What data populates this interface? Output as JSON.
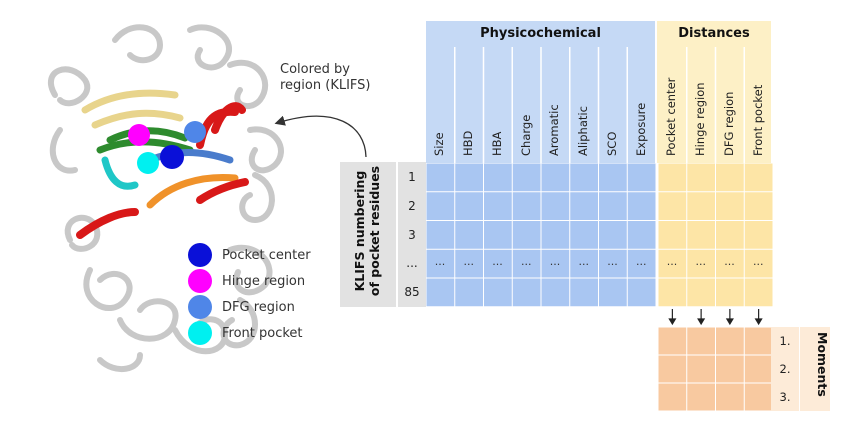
{
  "annotation": {
    "line1": "Colored by",
    "line2": "region (KLIFS)"
  },
  "legend": [
    {
      "label": "Pocket center",
      "color": "#0a10d8"
    },
    {
      "label": "Hinge region",
      "color": "#ff00ff"
    },
    {
      "label": "DFG region",
      "color": "#4f86e8"
    },
    {
      "label": "Front pocket",
      "color": "#00f0f0"
    }
  ],
  "table": {
    "physicochemical_header": "Physicochemical",
    "distances_header": "Distances",
    "physicochemical_columns": [
      "Size",
      "HBD",
      "HBA",
      "Charge",
      "Aromatic",
      "Aliphatic",
      "SCO",
      "Exposure"
    ],
    "distance_columns": [
      "Pocket center",
      "Hinge region",
      "DFG region",
      "Front pocket"
    ],
    "row_numbers": [
      "1",
      "2",
      "3",
      "...",
      "85"
    ],
    "ellipsis": "...",
    "row_label_line1": "KLIFS numbering",
    "row_label_line2": "of pocket residues"
  },
  "moments": {
    "title": "Moments",
    "rows": [
      "1.",
      "2.",
      "3."
    ]
  },
  "colors": {
    "physicochemical_header_bg": "#c5d9f5",
    "physicochemical_cell": "#a9c6f2",
    "distances_header_bg": "#fdf0c6",
    "distance_cell": "#fde5a6",
    "moment_cell": "#f8c9a0",
    "row_label_bg": "#e2e2e2",
    "moment_label_bg": "#fdebd8"
  }
}
